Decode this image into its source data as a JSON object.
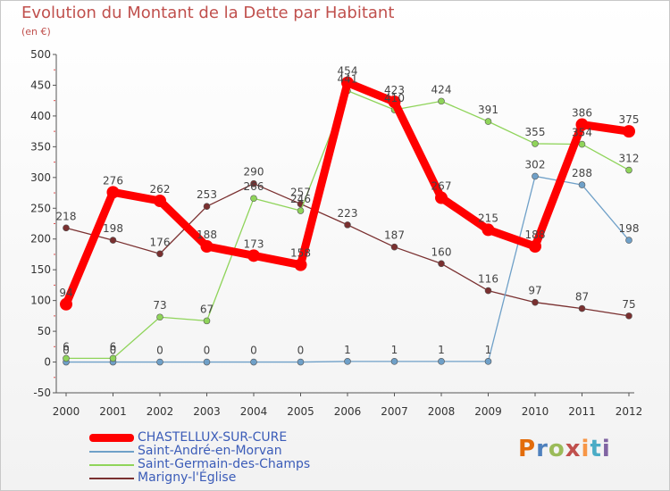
{
  "title": "Evolution du Montant de la Dette par Habitant",
  "subtitle": "(en €)",
  "logo": [
    "P",
    "r",
    "o",
    "x",
    "i",
    "t",
    "i"
  ],
  "logo_colors": [
    "#e36c0a",
    "#4f81bd",
    "#9bbb59",
    "#c0504d",
    "#f79646",
    "#4bacc6",
    "#8064a2"
  ],
  "chart_data": {
    "type": "line",
    "x": [
      "2000",
      "2001",
      "2002",
      "2003",
      "2004",
      "2005",
      "2006",
      "2007",
      "2008",
      "2009",
      "2010",
      "2011",
      "2012"
    ],
    "ylim": [
      -50,
      500
    ],
    "yticks": [
      "-50",
      "0",
      "50",
      "100",
      "150",
      "200",
      "250",
      "300",
      "350",
      "400",
      "450",
      "500"
    ],
    "grid": false,
    "legend_position": "bottom-left",
    "series": [
      {
        "name": "CHASTELLUX-SUR-CURE",
        "color": "#ff0000",
        "values": [
          94,
          276,
          262,
          188,
          173,
          158,
          454,
          423,
          267,
          215,
          188,
          386,
          375
        ]
      },
      {
        "name": "Saint-André-en-Morvan",
        "color": "#6fa0c8",
        "values": [
          0,
          0,
          0,
          0,
          0,
          0,
          1,
          1,
          1,
          1,
          302,
          288,
          198
        ]
      },
      {
        "name": "Saint-Germain-des-Champs",
        "color": "#8fd45a",
        "values": [
          6,
          6,
          73,
          67,
          266,
          246,
          441,
          410,
          424,
          391,
          355,
          354,
          312
        ]
      },
      {
        "name": "Marigny-l'Église",
        "color": "#7a3030",
        "values": [
          218,
          198,
          176,
          253,
          290,
          257,
          223,
          187,
          160,
          116,
          97,
          87,
          75
        ]
      }
    ]
  }
}
